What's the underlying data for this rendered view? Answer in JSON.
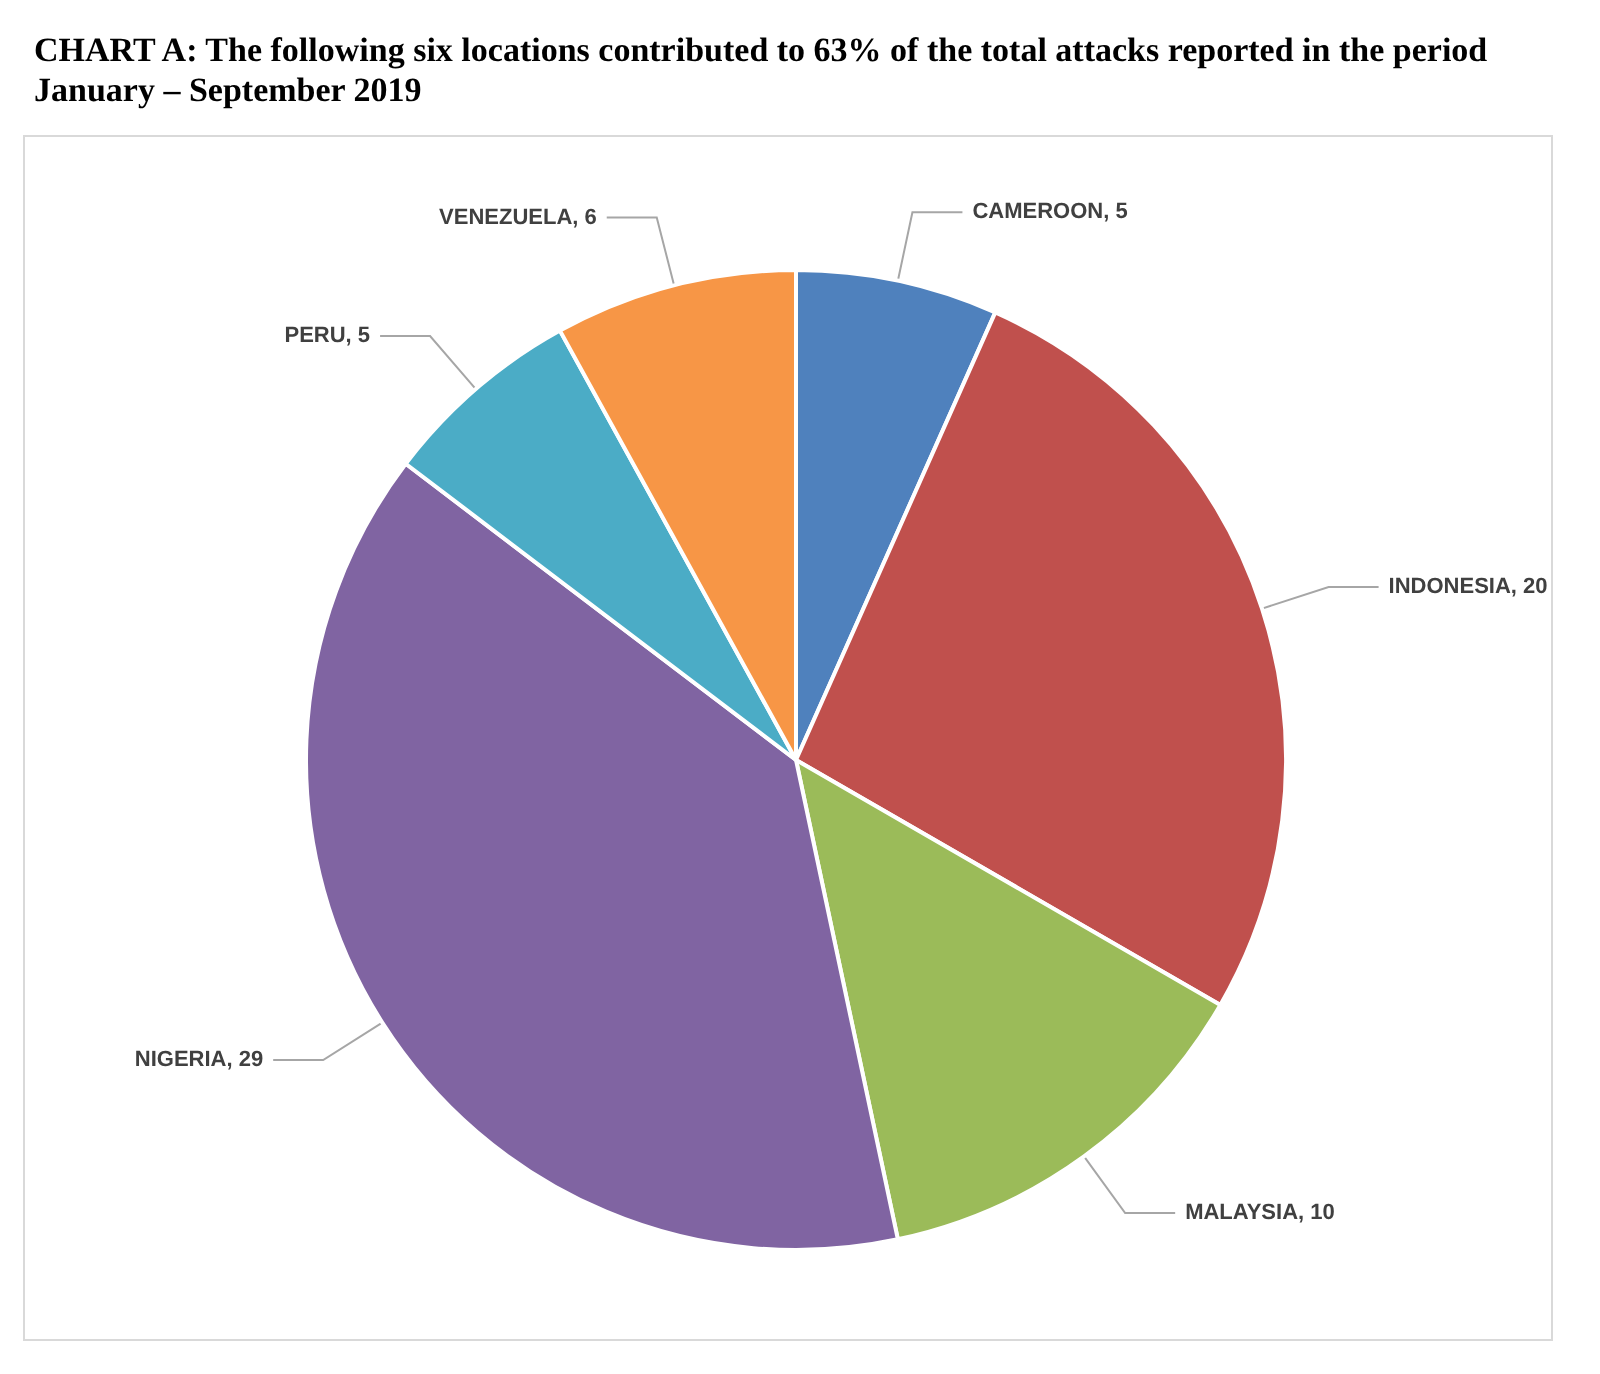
{
  "chart_data": {
    "type": "pie",
    "title": "CHART A: The following six locations contributed to 63% of the total attacks reported in the period January – September 2019",
    "categories": [
      "CAMEROON",
      "INDONESIA",
      "MALAYSIA",
      "NIGERIA",
      "PERU",
      "VENEZUELA"
    ],
    "values": [
      5,
      20,
      10,
      29,
      5,
      6
    ],
    "value_labels": [
      ", 5",
      ", 20",
      ", 10",
      ", 29",
      ", 5",
      ", 6"
    ],
    "colors": [
      "#4f81bd",
      "#c0504d",
      "#9bbb59",
      "#8064a2",
      "#4bacc6",
      "#f79646"
    ],
    "legend": false
  }
}
